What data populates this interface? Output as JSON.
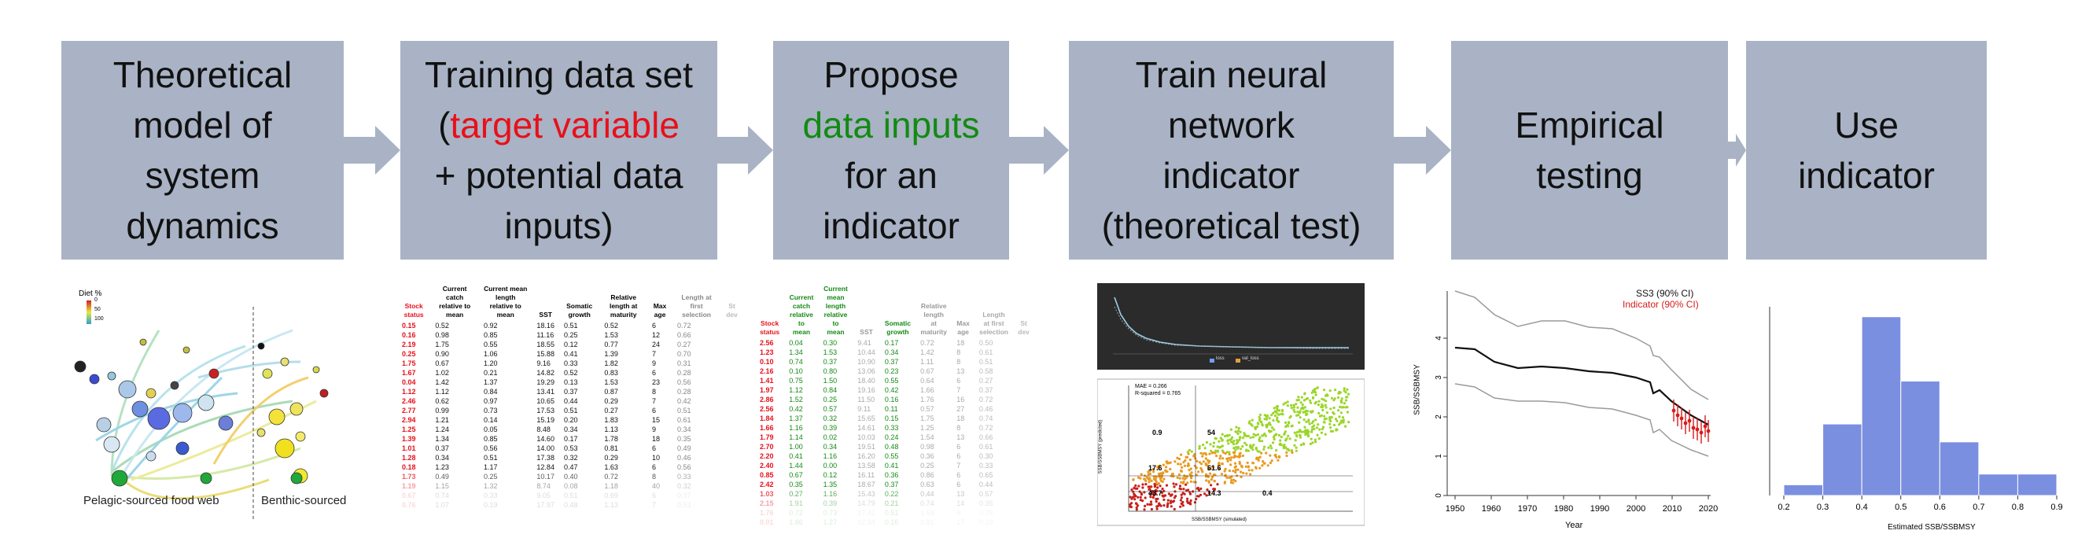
{
  "steps": {
    "s1": {
      "line1": "Theoretical",
      "line2": "model of",
      "line3": "system",
      "line4": "dynamics"
    },
    "s2": {
      "line1": "Training data set",
      "paren_open": "(",
      "target": "target variable",
      "line3": "+ potential data",
      "line4": "inputs)"
    },
    "s3": {
      "line1": "Propose",
      "inputs": "data inputs",
      "line3": "for an",
      "line4": "indicator"
    },
    "s4": {
      "line1": "Train neural",
      "line2": "network",
      "line3": "indicator",
      "line4": "(theoretical test)"
    },
    "s5": {
      "line1": "Empirical",
      "line2": "testing"
    },
    "s6": {
      "line1": "Use",
      "line2": "indicator"
    }
  },
  "foodweb": {
    "legend_title": "Diet %",
    "legend_ticks": [
      "0",
      "50",
      "100"
    ],
    "pelagic_label": "Pelagic-sourced food web",
    "benthic_label": "Benthic-sourced"
  },
  "table1": {
    "headers": [
      "Stock status",
      "Current catch relative to mean",
      "Current mean length relative to mean",
      "SST",
      "Somatic growth",
      "Relative length at maturity",
      "Max age",
      "Length at first selection",
      "St dev"
    ],
    "rows": [
      [
        "0.15",
        "0.52",
        "0.92",
        "18.16",
        "0.51",
        "0.52",
        "6",
        "0.72"
      ],
      [
        "0.16",
        "0.98",
        "0.85",
        "11.16",
        "0.25",
        "1.53",
        "12",
        "0.66"
      ],
      [
        "2.19",
        "1.75",
        "0.55",
        "18.55",
        "0.12",
        "0.77",
        "24",
        "0.27"
      ],
      [
        "0.25",
        "0.90",
        "1.06",
        "15.88",
        "0.41",
        "1.39",
        "7",
        "0.70"
      ],
      [
        "1.75",
        "0.67",
        "1.20",
        "9.16",
        "0.33",
        "1.82",
        "9",
        "0.31"
      ],
      [
        "1.67",
        "1.02",
        "0.21",
        "14.82",
        "0.52",
        "0.83",
        "6",
        "0.28"
      ],
      [
        "0.04",
        "1.42",
        "1.37",
        "19.29",
        "0.13",
        "1.53",
        "23",
        "0.56"
      ],
      [
        "1.12",
        "1.12",
        "0.84",
        "13.41",
        "0.37",
        "0.87",
        "8",
        "0.28"
      ],
      [
        "2.46",
        "0.62",
        "0.97",
        "10.65",
        "0.44",
        "0.29",
        "7",
        "0.42"
      ],
      [
        "2.77",
        "0.99",
        "0.73",
        "17.53",
        "0.51",
        "0.27",
        "6",
        "0.51"
      ],
      [
        "2.94",
        "1.21",
        "0.14",
        "15.19",
        "0.20",
        "1.83",
        "15",
        "0.61"
      ],
      [
        "1.25",
        "1.24",
        "0.05",
        "8.48",
        "0.34",
        "1.13",
        "9",
        "0.34"
      ],
      [
        "1.39",
        "1.34",
        "0.85",
        "14.60",
        "0.17",
        "1.78",
        "18",
        "0.35"
      ],
      [
        "1.01",
        "0.37",
        "0.56",
        "14.00",
        "0.53",
        "0.81",
        "6",
        "0.49"
      ],
      [
        "1.28",
        "0.34",
        "0.51",
        "17.38",
        "0.32",
        "0.29",
        "10",
        "0.46"
      ],
      [
        "0.18",
        "1.23",
        "1.17",
        "12.84",
        "0.47",
        "1.63",
        "6",
        "0.56"
      ],
      [
        "1.73",
        "0.49",
        "0.25",
        "10.17",
        "0.40",
        "0.72",
        "8",
        "0.33"
      ],
      [
        "1.19",
        "1.15",
        "1.32",
        "8.74",
        "0.08",
        "1.18",
        "40",
        "0.32"
      ],
      [
        "0.67",
        "0.74",
        "0.33",
        "9.05",
        "0.51",
        "0.69",
        "6",
        "0.37"
      ],
      [
        "0.76",
        "1.07",
        "0.19",
        "17.97",
        "0.48",
        "1.13",
        "7",
        "0.53"
      ]
    ]
  },
  "table2": {
    "headers": [
      "Stock status",
      "Current catch relative to mean",
      "Current mean length relative to mean",
      "SST",
      "Somatic growth",
      "Relative length at maturity",
      "Max age",
      "Length at first selection",
      "St dev"
    ],
    "rows": [
      [
        "2.56",
        "0.04",
        "0.30",
        "9.41",
        "0.17",
        "0.72",
        "18",
        "0.50"
      ],
      [
        "1.23",
        "1.34",
        "1.53",
        "10.44",
        "0.34",
        "1.42",
        "8",
        "0.61"
      ],
      [
        "0.10",
        "0.74",
        "0.37",
        "10.90",
        "0.37",
        "1.11",
        "8",
        "0.51"
      ],
      [
        "2.16",
        "0.10",
        "0.80",
        "13.06",
        "0.23",
        "0.67",
        "13",
        "0.58"
      ],
      [
        "1.41",
        "0.75",
        "1.50",
        "18.40",
        "0.55",
        "0.64",
        "6",
        "0.27"
      ],
      [
        "1.97",
        "1.12",
        "0.84",
        "19.16",
        "0.42",
        "1.66",
        "7",
        "0.37"
      ],
      [
        "2.86",
        "1.52",
        "0.25",
        "11.50",
        "0.16",
        "1.76",
        "16",
        "0.72"
      ],
      [
        "2.56",
        "0.42",
        "0.57",
        "9.11",
        "0.11",
        "0.57",
        "27",
        "0.46"
      ],
      [
        "1.84",
        "1.37",
        "0.32",
        "15.65",
        "0.15",
        "1.75",
        "18",
        "0.74"
      ],
      [
        "1.66",
        "1.16",
        "0.39",
        "14.61",
        "0.33",
        "1.25",
        "8",
        "0.72"
      ],
      [
        "1.79",
        "1.14",
        "0.02",
        "10.03",
        "0.24",
        "1.54",
        "13",
        "0.66"
      ],
      [
        "2.70",
        "1.00",
        "0.34",
        "19.51",
        "0.48",
        "0.98",
        "6",
        "0.61"
      ],
      [
        "2.20",
        "0.41",
        "1.16",
        "16.20",
        "0.55",
        "0.36",
        "6",
        "0.30"
      ],
      [
        "2.40",
        "1.44",
        "0.00",
        "13.58",
        "0.41",
        "0.25",
        "7",
        "0.33"
      ],
      [
        "0.85",
        "0.67",
        "0.12",
        "16.11",
        "0.36",
        "0.86",
        "6",
        "0.65"
      ],
      [
        "2.42",
        "0.35",
        "1.35",
        "18.67",
        "0.37",
        "0.63",
        "6",
        "0.44"
      ],
      [
        "1.03",
        "0.27",
        "1.16",
        "15.43",
        "0.22",
        "0.44",
        "13",
        "0.57"
      ],
      [
        "2.15",
        "1.91",
        "0.39",
        "14.79",
        "0.21",
        "0.74",
        "14",
        "0.35"
      ],
      [
        "1.76",
        "0.72",
        "0.73",
        "17.42",
        "0.51",
        "1.69",
        "6",
        "0.28"
      ],
      [
        "0.01",
        "1.86",
        "1.27",
        "12.84",
        "0.16",
        "0.91",
        "17",
        "0.29"
      ]
    ]
  },
  "scatter": {
    "mae_text": "MAE = 0.266",
    "r2_text": "R-squared = 0.765",
    "xlabel": "SSB/SSBMSY (simulated)",
    "ylabel": "SSB/SSBMSY (predicted)",
    "xticks": [
      "0.0",
      "0.5",
      "1.0",
      "1.5",
      "2.0"
    ],
    "yticks": [
      "0.0",
      "0.5",
      "1.0",
      "1.5",
      "2.0",
      "2.5"
    ],
    "quad": [
      "0.9",
      "54",
      "17.6",
      "61.6",
      "43.7",
      "0.4",
      "14.3"
    ],
    "loss_legend": [
      "loss",
      "val_loss"
    ]
  },
  "empirical": {
    "legend1": "SS3 (90% CI)",
    "legend2": "Indicator (90% CI)",
    "xlabel": "Year",
    "ylabel": "SSB/SSBMSY",
    "xticks": [
      "1950",
      "1960",
      "1970",
      "1980",
      "1990",
      "2000",
      "2010",
      "2020"
    ],
    "yticks": [
      "0",
      "1",
      "2",
      "3",
      "4"
    ],
    "colors": {
      "ss3": "#111111",
      "indicator": "#d81b1b"
    }
  },
  "chart_data": {
    "type": "bar",
    "title": "",
    "xlabel": "Estimated SSB/SSBMSY",
    "ylabel": "",
    "bin_edges": [
      0.2,
      0.3,
      0.4,
      0.5,
      0.6,
      0.7,
      0.8,
      0.9
    ],
    "xticks": [
      "0.2",
      "0.3",
      "0.4",
      "0.5",
      "0.6",
      "0.7",
      "0.8",
      "0.9"
    ],
    "values": [
      6,
      40,
      100,
      64,
      30,
      12,
      12
    ],
    "ylim": [
      0,
      110
    ],
    "color": "#7b8fe0"
  }
}
